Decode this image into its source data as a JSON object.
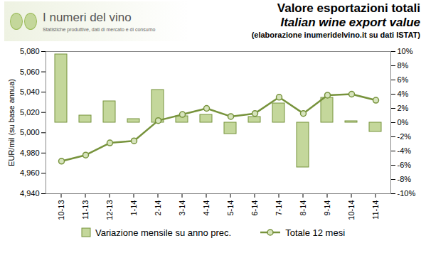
{
  "chart_data": {
    "type": "bar",
    "title": "Valore esportazioni totali",
    "subtitle": "Italian wine export value",
    "caption": "(elaborazione inumeridelvino.it su dati ISTAT)",
    "logo": {
      "title": "I numeri del vino",
      "subtitle": "Statistiche produttive, dati di mercato e di consumo"
    },
    "ylabel": "EUR/mil (su base annua)",
    "categories": [
      "10-13",
      "11-13",
      "12-13",
      "1-14",
      "2-14",
      "3-14",
      "4-14",
      "5-14",
      "6-14",
      "7-14",
      "8-14",
      "9-14",
      "10-14",
      "11-14"
    ],
    "series": [
      {
        "name": "Variazione mensile su anno prec.",
        "type": "bar",
        "axis": "y2",
        "color": "#c4d79b",
        "values": [
          9.6,
          1.0,
          3.0,
          0.5,
          4.6,
          0.9,
          1.1,
          -1.6,
          0.8,
          2.7,
          -6.3,
          3.5,
          0.2,
          -1.3
        ]
      },
      {
        "name": "Totale 12 mesi",
        "type": "line",
        "marker": "circle",
        "color": "#77933c",
        "values": [
          4972,
          4978,
          4990,
          4992,
          5012,
          5018,
          5024,
          5016,
          5019,
          5035,
          5019,
          5037,
          5038,
          5032
        ]
      }
    ],
    "ylim": [
      4940,
      5080
    ],
    "yticks": [
      {
        "value": 4940,
        "label": "4,940"
      },
      {
        "value": 4960,
        "label": "4,960"
      },
      {
        "value": 4980,
        "label": "4,980"
      },
      {
        "value": 5000,
        "label": "5,000"
      },
      {
        "value": 5020,
        "label": "5,020"
      },
      {
        "value": 5040,
        "label": "5,040"
      },
      {
        "value": 5060,
        "label": "5,060"
      },
      {
        "value": 5080,
        "label": "5,080"
      }
    ],
    "y2lim": [
      -10,
      10
    ],
    "y2ticks": [
      {
        "value": -10,
        "label": "-10%"
      },
      {
        "value": -8,
        "label": "-8%"
      },
      {
        "value": -6,
        "label": "-6%"
      },
      {
        "value": -4,
        "label": "-4%"
      },
      {
        "value": -2,
        "label": "-2%"
      },
      {
        "value": 0,
        "label": "0%"
      },
      {
        "value": 2,
        "label": "2%"
      },
      {
        "value": 4,
        "label": "4%"
      },
      {
        "value": 6,
        "label": "6%"
      },
      {
        "value": 8,
        "label": "8%"
      },
      {
        "value": 10,
        "label": "10%"
      }
    ],
    "grid": false,
    "legend": "bottom"
  }
}
